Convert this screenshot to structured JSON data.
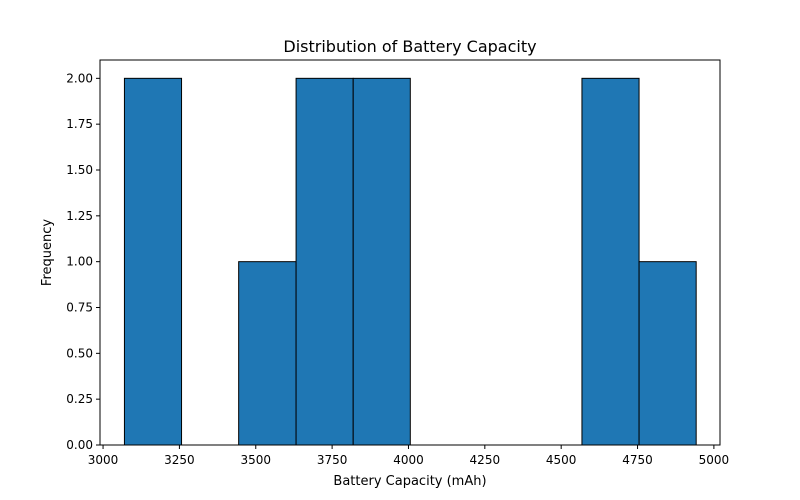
{
  "chart_data": {
    "type": "bar",
    "subtype": "histogram",
    "title": "Distribution of Battery Capacity",
    "xlabel": "Battery Capacity (mAh)",
    "ylabel": "Frequency",
    "xlim": [
      2990,
      5020
    ],
    "ylim": [
      0,
      2.1
    ],
    "xticks": [
      3000,
      3250,
      3500,
      3750,
      4000,
      4250,
      4500,
      4750,
      5000
    ],
    "xtick_labels": [
      "3000",
      "3250",
      "3500",
      "3750",
      "4000",
      "4250",
      "4500",
      "4750",
      "5000"
    ],
    "yticks": [
      0,
      0.25,
      0.5,
      0.75,
      1.0,
      1.25,
      1.5,
      1.75,
      2.0
    ],
    "ytick_labels": [
      "0.00",
      "0.25",
      "0.50",
      "0.75",
      "1.00",
      "1.25",
      "1.50",
      "1.75",
      "2.00"
    ],
    "bin_edges": [
      3070,
      3257,
      3444,
      3632,
      3819,
      4006,
      4193,
      4381,
      4568,
      4755,
      4942
    ],
    "values": [
      2,
      0,
      1,
      2,
      2,
      0,
      0,
      0,
      2,
      1
    ],
    "bar_color": "#1f77b4",
    "edge_color": "#000000",
    "grid": false,
    "legend": false
  }
}
